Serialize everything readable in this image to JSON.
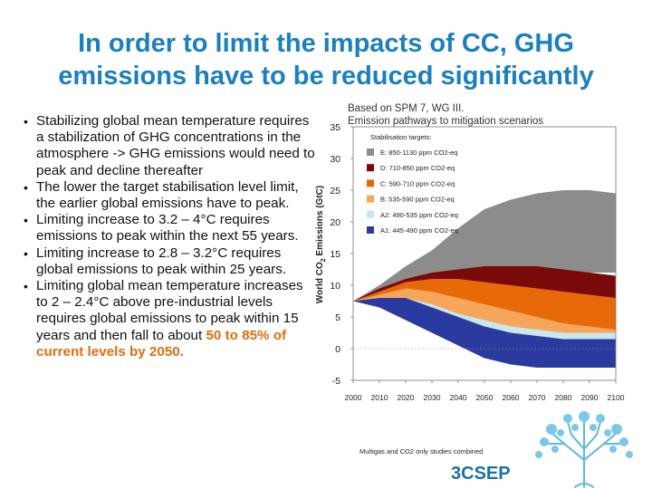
{
  "slide": {
    "title_line1": "In order to limit the impacts of CC, GHG",
    "title_line2": "emissions have to be reduced significantly"
  },
  "bullets": [
    {
      "text": "Stabilizing  global mean temperature requires a stabilization of GHG concentrations in the atmosphere -> GHG emissions would need to peak and decline thereafter"
    },
    {
      "text": "The lower the target stabilisation level limit, the earlier global emissions have to peak."
    },
    {
      "text": "Limiting increase to 3.2 – 4°C requires emissions to peak within the next 55 years."
    },
    {
      "text": "Limiting increase to 2.8 – 3.2°C requires global emissions to peak within 25 years."
    },
    {
      "text": "Limiting global mean temperature increases to 2 – 2.4°C above pre-industrial levels requires global emissions to peak within 15 years and then fall to about ",
      "highlight": "50 to 85% of current levels by 2050."
    }
  ],
  "logo": {
    "text": "3CSEP",
    "color": "#1a6fa8"
  },
  "chart_data": {
    "type": "area",
    "source_note": "Based on SPM 7, WG III. Emission pathways to mitigation scenarios",
    "ylabel": "World CO2 Emissions (GtC)",
    "ylabel_parts": {
      "main": "World CO",
      "sub": "2",
      "rest": " Emissions (GtC)"
    },
    "ylim": [
      -5,
      35
    ],
    "yticks": [
      -5,
      0,
      5,
      10,
      15,
      20,
      25,
      30,
      35
    ],
    "xlim": [
      2000,
      2100
    ],
    "xticks": [
      2000,
      2010,
      2020,
      2030,
      2040,
      2050,
      2060,
      2070,
      2080,
      2090,
      2100
    ],
    "footnote": "Multigas and CO2 only studies combined",
    "legend_title": "Stabilisation targets:",
    "legend_placement": "top-left",
    "x": [
      2000,
      2010,
      2020,
      2030,
      2040,
      2050,
      2060,
      2070,
      2080,
      2090,
      2100
    ],
    "series": [
      {
        "name": "E: 850-1130 ppm CO2-eq",
        "color": "#8c8c8c",
        "upper": [
          7.5,
          10,
          13,
          15.5,
          19,
          22,
          23.5,
          24.5,
          25,
          25,
          24.5
        ],
        "lower": [
          7.5,
          8.5,
          9.5,
          10,
          10.5,
          11,
          11.5,
          12,
          12,
          12,
          12
        ]
      },
      {
        "name": "D: 710-850 ppm CO2-eq",
        "color": "#7a0a0a",
        "upper": [
          7.5,
          9.5,
          11,
          12,
          12.5,
          13,
          13,
          13,
          12.5,
          12,
          11.5
        ],
        "lower": [
          7.5,
          8,
          8.5,
          8,
          7,
          6,
          5,
          4.5,
          4,
          3.5,
          3
        ]
      },
      {
        "name": "C: 590-710 ppm CO2-eq",
        "color": "#e8690a",
        "upper": [
          7.5,
          9,
          10.5,
          11,
          11,
          10.5,
          10,
          9.5,
          9,
          8.5,
          8
        ],
        "lower": [
          7.5,
          7.5,
          7,
          6,
          4.5,
          3,
          2,
          1.5,
          1,
          0.5,
          0.5
        ]
      },
      {
        "name": "B: 535-590 ppm CO2-eq",
        "color": "#f5a65b",
        "upper": [
          7.5,
          8.5,
          9.5,
          9,
          8,
          7,
          6,
          5,
          4,
          3.5,
          3
        ],
        "lower": [
          7.5,
          7,
          6,
          4.5,
          3,
          2,
          1,
          0,
          -0.5,
          -1,
          -1
        ]
      },
      {
        "name": "A2: 490-535 ppm CO2-eq",
        "color": "#c9e7ef",
        "upper": [
          7.5,
          8,
          8,
          7,
          5.5,
          4.5,
          3.5,
          3,
          2.5,
          2.5,
          2.5
        ],
        "lower": [
          7.5,
          6.5,
          5,
          3.5,
          2,
          0.5,
          -0.5,
          -1,
          -1.5,
          -1.5,
          -1.5
        ]
      },
      {
        "name": "A1: 445-490 ppm CO2-eq",
        "color": "#2b3a9e",
        "upper": [
          7.5,
          8,
          8,
          6.5,
          5,
          3.5,
          2.5,
          2,
          1.5,
          1.5,
          1.5
        ],
        "lower": [
          7.5,
          6.5,
          4.5,
          2.5,
          0.5,
          -1.5,
          -2.5,
          -3,
          -3,
          -3,
          -3
        ]
      }
    ]
  }
}
